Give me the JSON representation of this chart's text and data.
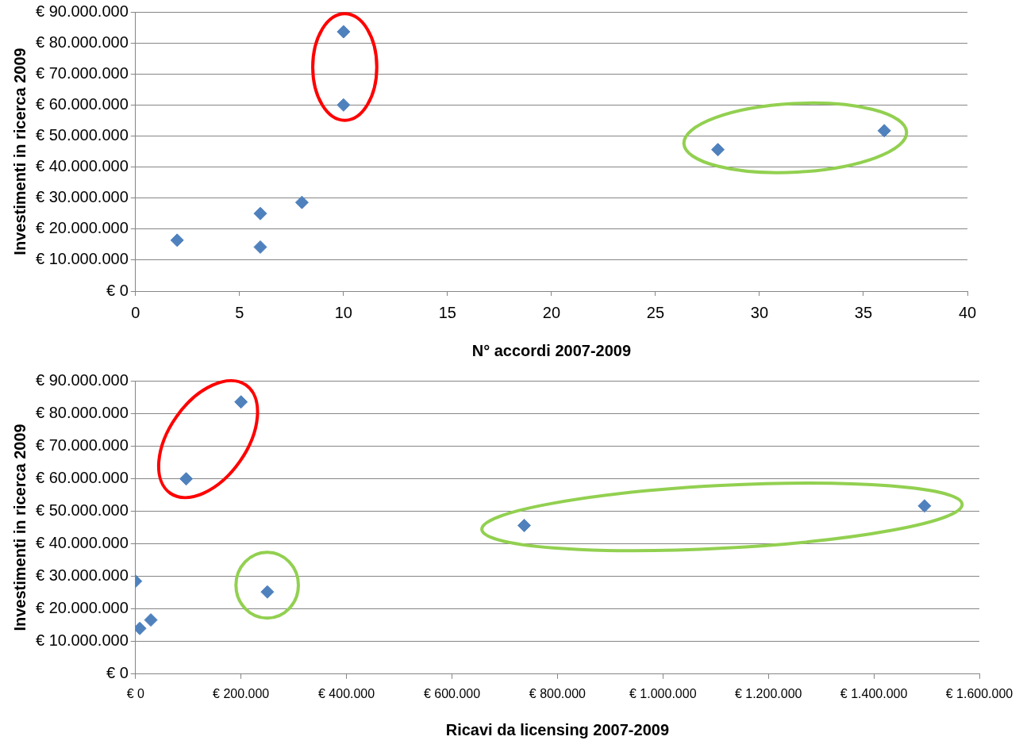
{
  "chart_data": [
    {
      "type": "scatter",
      "xlabel": "N° accordi 2007-2009",
      "ylabel": "Investimenti in ricerca 2009",
      "x": [
        2,
        6,
        6,
        8,
        10,
        10,
        28,
        36
      ],
      "series": [
        {
          "color": "#4f81bd",
          "values": [
            16400000,
            25000000,
            14200000,
            28600000,
            60000000,
            83600000,
            45600000,
            51700000
          ]
        }
      ],
      "xlim": [
        0,
        40
      ],
      "xticks": [
        0,
        5,
        10,
        15,
        20,
        25,
        30,
        35,
        40
      ],
      "ylim": [
        0,
        90000000
      ],
      "yticks": [
        {
          "value": 0,
          "label": "€ 0"
        },
        {
          "value": 10000000,
          "label": "€ 10.000.000"
        },
        {
          "value": 20000000,
          "label": "€ 20.000.000"
        },
        {
          "value": 30000000,
          "label": "€ 30.000.000"
        },
        {
          "value": 40000000,
          "label": "€ 40.000.000"
        },
        {
          "value": 50000000,
          "label": "€ 50.000.000"
        },
        {
          "value": 60000000,
          "label": "€ 60.000.000"
        },
        {
          "value": 70000000,
          "label": "€ 70.000.000"
        },
        {
          "value": 80000000,
          "label": "€ 80.000.000"
        },
        {
          "value": 90000000,
          "label": "€ 90.000.000"
        }
      ],
      "grid": "y",
      "marker": "diamond",
      "legend": false
    },
    {
      "type": "scatter",
      "xlabel": "Ricavi da licensing 2007-2009",
      "ylabel": "Investimenti in ricerca 2009",
      "x": [
        0,
        8000,
        29000,
        96000,
        200000,
        250000,
        737000,
        1496000
      ],
      "series": [
        {
          "color": "#4f81bd",
          "values": [
            28500000,
            14000000,
            16600000,
            59900000,
            83500000,
            25200000,
            45600000,
            51600000
          ]
        }
      ],
      "xlim": [
        0,
        1600000
      ],
      "xticks": [
        {
          "value": 0,
          "label": "€ 0"
        },
        {
          "value": 200000,
          "label": "€ 200.000"
        },
        {
          "value": 400000,
          "label": "€ 400.000"
        },
        {
          "value": 600000,
          "label": "€ 600.000"
        },
        {
          "value": 800000,
          "label": "€ 800.000"
        },
        {
          "value": 1000000,
          "label": "€ 1.000.000"
        },
        {
          "value": 1200000,
          "label": "€ 1.200.000"
        },
        {
          "value": 1400000,
          "label": "€ 1.400.000"
        },
        {
          "value": 1600000,
          "label": "€ 1.600.000"
        }
      ],
      "ylim": [
        0,
        90000000
      ],
      "yticks": [
        {
          "value": 0,
          "label": "€ 0"
        },
        {
          "value": 10000000,
          "label": "€ 10.000.000"
        },
        {
          "value": 20000000,
          "label": "€ 20.000.000"
        },
        {
          "value": 30000000,
          "label": "€ 30.000.000"
        },
        {
          "value": 40000000,
          "label": "€ 40.000.000"
        },
        {
          "value": 50000000,
          "label": "€ 50.000.000"
        },
        {
          "value": 60000000,
          "label": "€ 60.000.000"
        },
        {
          "value": 70000000,
          "label": "€ 70.000.000"
        },
        {
          "value": 80000000,
          "label": "€ 80.000.000"
        },
        {
          "value": 90000000,
          "label": "€ 90.000.000"
        }
      ],
      "grid": "y",
      "marker": "diamond",
      "legend": false
    }
  ]
}
